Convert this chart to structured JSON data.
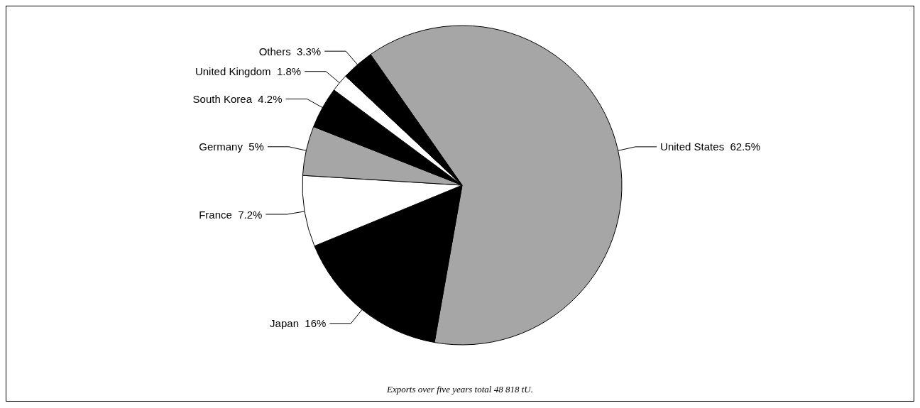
{
  "chart_data": {
    "type": "pie",
    "categories": [
      "United States",
      "Japan",
      "France",
      "Germany",
      "South Korea",
      "United Kingdom",
      "Others"
    ],
    "values": [
      62.5,
      16,
      7.2,
      5,
      4.2,
      1.8,
      3.3
    ],
    "colors": [
      "#a6a6a6",
      "#000000",
      "#ffffff",
      "#a6a6a6",
      "#000000",
      "#ffffff",
      "#000000"
    ],
    "value_labels": [
      "62.5%",
      "16%",
      "7.2%",
      "5%",
      "4.2%",
      "1.8%",
      "3.3%"
    ],
    "legend": false,
    "annotations": [
      "Exports over five years total 48 818 tU."
    ]
  }
}
